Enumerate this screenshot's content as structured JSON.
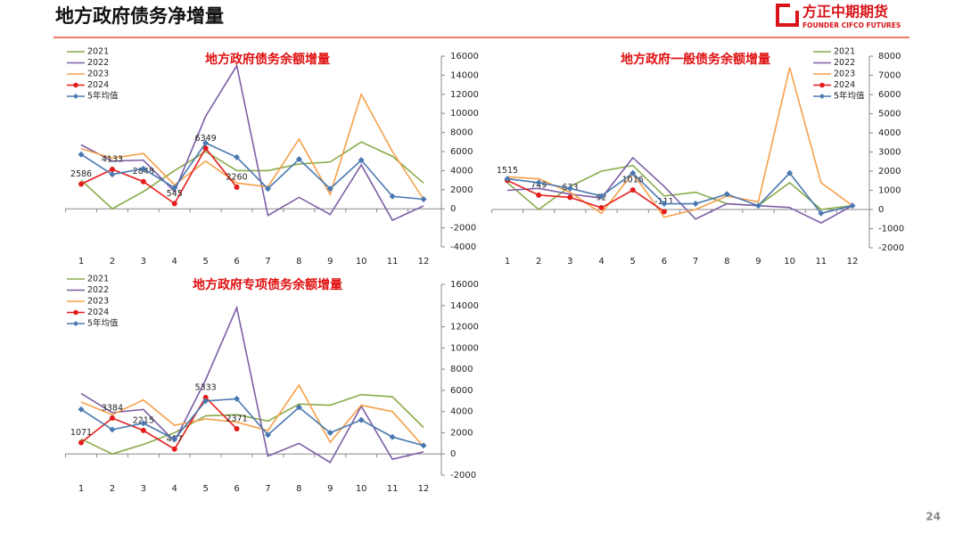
{
  "header": {
    "title": "地方政府债务净增量",
    "logo_cn": "方正中期期货",
    "logo_en": "FOUNDER CIFCO FUTURES"
  },
  "page_number": "24",
  "chart_data": [
    {
      "type": "line",
      "title": "地方政府债务余额增量",
      "legend": "top-left",
      "categories": [
        "1",
        "2",
        "3",
        "4",
        "5",
        "6",
        "7",
        "8",
        "9",
        "10",
        "11",
        "12"
      ],
      "ylim": [
        -4000,
        16000
      ],
      "yticks": [
        -4000,
        -2000,
        0,
        2000,
        4000,
        6000,
        8000,
        10000,
        12000,
        14000,
        16000
      ],
      "series": [
        {
          "name": "2021",
          "color": "#8aab4a",
          "values": [
            3000,
            0,
            1800,
            4000,
            6000,
            4000,
            4000,
            4700,
            4900,
            7000,
            5500,
            2700
          ]
        },
        {
          "name": "2022",
          "color": "#7c5fa6",
          "values": [
            6700,
            5000,
            5100,
            1800,
            9700,
            15000,
            -700,
            1200,
            -600,
            4600,
            -1200,
            300
          ]
        },
        {
          "name": "2023",
          "color": "#f5a04a",
          "values": [
            6300,
            5300,
            5800,
            2500,
            5000,
            2700,
            2300,
            7300,
            1500,
            12000,
            6000,
            1000
          ]
        },
        {
          "name": "2024",
          "color": "#e51c1c",
          "marker": "circle",
          "data_labels": true,
          "values": [
            2586,
            4133,
            2848,
            545,
            6349,
            2260,
            null,
            null,
            null,
            null,
            null,
            null
          ]
        },
        {
          "name": "5年均值",
          "color": "#4a78b0",
          "marker": "diamond",
          "values": [
            5700,
            3600,
            4200,
            2200,
            6900,
            5400,
            2100,
            5200,
            2100,
            5100,
            1300,
            1000
          ]
        }
      ]
    },
    {
      "type": "line",
      "title": "地方政府一般债务余额增量",
      "legend": "top-right",
      "categories": [
        "1",
        "2",
        "3",
        "4",
        "5",
        "6",
        "7",
        "8",
        "9",
        "10",
        "11",
        "12"
      ],
      "ylim": [
        -2000,
        8000
      ],
      "yticks": [
        -2000,
        -1000,
        0,
        1000,
        2000,
        3000,
        4000,
        5000,
        6000,
        7000,
        8000
      ],
      "series": [
        {
          "name": "2021",
          "color": "#8aab4a",
          "values": [
            1400,
            0,
            1200,
            2000,
            2300,
            700,
            900,
            300,
            200,
            1400,
            0,
            200
          ]
        },
        {
          "name": "2022",
          "color": "#7c5fa6",
          "values": [
            1000,
            1100,
            800,
            600,
            2700,
            1200,
            -500,
            300,
            200,
            100,
            -700,
            200
          ]
        },
        {
          "name": "2023",
          "color": "#f5a04a",
          "values": [
            1700,
            1600,
            900,
            -200,
            1900,
            -400,
            0,
            700,
            400,
            7400,
            1400,
            200
          ]
        },
        {
          "name": "2024",
          "color": "#e51c1c",
          "marker": "circle",
          "data_labels": true,
          "values": [
            1515,
            749,
            633,
            92,
            1016,
            -111,
            null,
            null,
            null,
            null,
            null,
            null
          ]
        },
        {
          "name": "5年均值",
          "color": "#4a78b0",
          "marker": "diamond",
          "values": [
            1600,
            1400,
            1100,
            700,
            1900,
            300,
            300,
            800,
            200,
            1900,
            -200,
            200
          ]
        }
      ]
    },
    {
      "type": "line",
      "title": "地方政府专项债务余额增量",
      "legend": "top-left",
      "categories": [
        "1",
        "2",
        "3",
        "4",
        "5",
        "6",
        "7",
        "8",
        "9",
        "10",
        "11",
        "12"
      ],
      "ylim": [
        -2000,
        16000
      ],
      "yticks": [
        -2000,
        0,
        2000,
        4000,
        6000,
        8000,
        10000,
        12000,
        14000,
        16000
      ],
      "series": [
        {
          "name": "2021",
          "color": "#8aab4a",
          "values": [
            1400,
            0,
            900,
            2000,
            3600,
            3700,
            3100,
            4700,
            4600,
            5600,
            5400,
            2500
          ]
        },
        {
          "name": "2022",
          "color": "#7c5fa6",
          "values": [
            5700,
            3900,
            4200,
            1200,
            7000,
            13800,
            -200,
            1000,
            -800,
            4500,
            -500,
            200
          ]
        },
        {
          "name": "2023",
          "color": "#f5a04a",
          "values": [
            4900,
            3700,
            5100,
            2700,
            3300,
            3000,
            2200,
            6500,
            1100,
            4600,
            4000,
            700
          ]
        },
        {
          "name": "2024",
          "color": "#e51c1c",
          "marker": "circle",
          "data_labels": true,
          "values": [
            1071,
            3384,
            2215,
            457,
            5333,
            2371,
            null,
            null,
            null,
            null,
            null,
            null
          ]
        },
        {
          "name": "5年均值",
          "color": "#4a78b0",
          "marker": "diamond",
          "values": [
            4200,
            2300,
            2900,
            1400,
            5000,
            5200,
            1800,
            4400,
            2000,
            3200,
            1600,
            800
          ]
        }
      ]
    }
  ]
}
